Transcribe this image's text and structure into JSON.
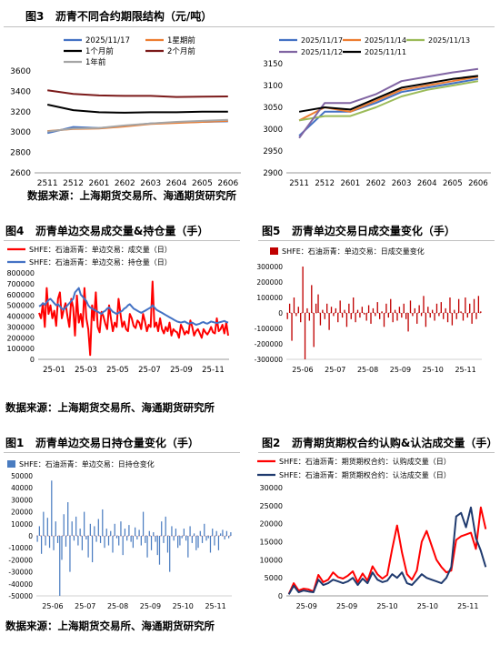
{
  "sources": {
    "row1": "数据来源：上海期货交易所、海通期货研究所",
    "row2": "数据来源：上海期货交易所、海通期货研究所",
    "row3": "数据来源：上海期货交易所、海通期货研究所"
  },
  "colors": {
    "blue": "#4472c4",
    "orange": "#ed7d31",
    "black": "#000000",
    "darkred": "#7b1a1a",
    "gray": "#a5a5a5",
    "green": "#9bbb59",
    "purple": "#8064a2",
    "red": "#ff0000",
    "barred": "#c00000",
    "navy": "#1f3a6e",
    "barblue": "#4a7cc0"
  },
  "chart_data": [
    {
      "id": "fig3-left",
      "figure_label": "图3",
      "title": "沥青不同合约期限结构（元/吨）",
      "type": "line",
      "categories": [
        "2511",
        "2512",
        "2601",
        "2602",
        "2603",
        "2604",
        "2605",
        "2606"
      ],
      "ylim": [
        2600,
        3600
      ],
      "yticks": [
        2600,
        2800,
        3000,
        3200,
        3400,
        3600
      ],
      "legend_placement": "top",
      "series": [
        {
          "name": "2025/11/17",
          "color": "#4472c4",
          "values": [
            2990,
            3050,
            3040,
            3060,
            3085,
            3095,
            3100,
            3105
          ]
        },
        {
          "name": "1星期前",
          "color": "#ed7d31",
          "values": [
            3010,
            3030,
            3035,
            3055,
            3080,
            3090,
            3100,
            3110
          ]
        },
        {
          "name": "1个月前",
          "color": "#000000",
          "values": [
            3270,
            3215,
            3195,
            3190,
            3195,
            3195,
            3200,
            3200
          ]
        },
        {
          "name": "2个月前",
          "color": "#7b1a1a",
          "values": [
            3410,
            3375,
            3360,
            3355,
            3355,
            3345,
            3348,
            3350
          ]
        },
        {
          "name": "1年前",
          "color": "#a5a5a5",
          "values": [
            3005,
            3035,
            3040,
            3065,
            3085,
            3100,
            3110,
            3120
          ]
        }
      ]
    },
    {
      "id": "fig3-right",
      "title": "",
      "type": "line",
      "categories": [
        "2511",
        "2512",
        "2601",
        "2602",
        "2603",
        "2604",
        "2605",
        "2606"
      ],
      "ylim": [
        2900,
        3150
      ],
      "yticks": [
        2900,
        2950,
        3000,
        3050,
        3100,
        3150
      ],
      "legend_placement": "top",
      "series": [
        {
          "name": "2025/11/17",
          "color": "#4472c4",
          "values": [
            2985,
            3040,
            3040,
            3060,
            3085,
            3095,
            3105,
            3115
          ]
        },
        {
          "name": "2025/11/14",
          "color": "#ed7d31",
          "values": [
            3020,
            3050,
            3040,
            3065,
            3090,
            3100,
            3110,
            3120
          ]
        },
        {
          "name": "2025/11/13",
          "color": "#9bbb59",
          "values": [
            3020,
            3030,
            3030,
            3050,
            3075,
            3090,
            3100,
            3110
          ]
        },
        {
          "name": "2025/11/12",
          "color": "#8064a2",
          "values": [
            2980,
            3060,
            3060,
            3080,
            3110,
            3120,
            3130,
            3138
          ]
        },
        {
          "name": "2025/11/11",
          "color": "#000000",
          "values": [
            3040,
            3050,
            3045,
            3070,
            3095,
            3105,
            3115,
            3122
          ]
        }
      ]
    },
    {
      "id": "fig4",
      "figure_label": "图4",
      "title": "沥青单边交易成交量&持仓量（手）",
      "type": "line",
      "xticks": [
        "25-01",
        "25-03",
        "25-05",
        "25-07",
        "25-09",
        "25-11"
      ],
      "ylim": [
        0,
        800000
      ],
      "yticks": [
        0,
        100000,
        200000,
        300000,
        400000,
        500000,
        600000,
        700000,
        800000
      ],
      "legend_placement": "top-left",
      "series": [
        {
          "name": "SHFE：石油沥青：单边交易：成交量（日）",
          "color": "#ff0000",
          "width": 2,
          "values": [
            430000,
            380000,
            520000,
            300000,
            660000,
            420000,
            500000,
            380000,
            450000,
            310000,
            560000,
            620000,
            380000,
            460000,
            520000,
            400000,
            300000,
            560000,
            480000,
            220000,
            590000,
            340000,
            420000,
            300000,
            660000,
            380000,
            280000,
            40000,
            500000,
            360000,
            620000,
            300000,
            250000,
            440000,
            400000,
            330000,
            280000,
            500000,
            380000,
            260000,
            340000,
            300000,
            560000,
            430000,
            300000,
            350000,
            280000,
            260000,
            420000,
            380000,
            310000,
            290000,
            360000,
            340000,
            280000,
            420000,
            350000,
            260000,
            320000,
            300000,
            720000,
            300000,
            340000,
            260000,
            380000,
            280000,
            240000,
            300000,
            260000,
            340000,
            220000,
            280000,
            260000,
            250000,
            200000,
            320000,
            280000,
            230000,
            260000,
            240000,
            360000,
            300000,
            220000,
            260000,
            280000,
            240000,
            200000,
            280000,
            250000,
            230000,
            260000,
            300000,
            250000,
            240000,
            380000,
            260000,
            280000,
            320000,
            240000,
            340000,
            220000
          ]
        },
        {
          "name": "SHFE：石油沥青：单边交易：持仓量（日）",
          "color": "#4472c4",
          "width": 2,
          "values": [
            490000,
            500000,
            520000,
            505000,
            530000,
            550000,
            560000,
            540000,
            520000,
            500000,
            510000,
            490000,
            470000,
            460000,
            480000,
            500000,
            520000,
            540000,
            560000,
            620000,
            640000,
            660000,
            600000,
            580000,
            560000,
            540000,
            500000,
            480000,
            470000,
            460000,
            450000,
            440000,
            430000,
            420000,
            440000,
            450000,
            470000,
            480000,
            460000,
            440000,
            430000,
            420000,
            430000,
            440000,
            450000,
            470000,
            480000,
            500000,
            510000,
            490000,
            470000,
            460000,
            450000,
            440000,
            430000,
            440000,
            450000,
            460000,
            470000,
            480000,
            500000,
            480000,
            460000,
            450000,
            440000,
            430000,
            420000,
            410000,
            400000,
            390000,
            380000,
            370000,
            360000,
            350000,
            345000,
            340000,
            345000,
            350000,
            340000,
            330000,
            335000,
            340000,
            330000,
            320000,
            325000,
            330000,
            340000,
            345000,
            335000,
            330000,
            340000,
            350000,
            345000,
            340000,
            335000,
            340000,
            345000,
            350000,
            355000,
            345000,
            340000
          ]
        }
      ]
    },
    {
      "id": "fig5",
      "figure_label": "图5",
      "title": "沥青单边交易日成交量变化（手）",
      "type": "bar",
      "xticks": [
        "25-06",
        "25-07",
        "25-08",
        "25-09",
        "25-10",
        "25-11"
      ],
      "ylim": [
        -300000,
        300000
      ],
      "yticks": [
        -300000,
        -200000,
        -100000,
        0,
        100000,
        200000,
        300000
      ],
      "legend_placement": "top-left",
      "series": [
        {
          "name": "SHFE：石油沥青：单边交易：日成交量变化",
          "color": "#c00000",
          "values": [
            -40000,
            60000,
            -180000,
            100000,
            -20000,
            40000,
            -60000,
            300000,
            -300000,
            30000,
            -50000,
            180000,
            -220000,
            60000,
            120000,
            -80000,
            20000,
            -40000,
            60000,
            -110000,
            40000,
            -20000,
            30000,
            -60000,
            80000,
            -30000,
            20000,
            -90000,
            60000,
            -40000,
            100000,
            -60000,
            20000,
            -30000,
            40000,
            -10000,
            -50000,
            50000,
            -70000,
            30000,
            -20000,
            70000,
            -40000,
            10000,
            -90000,
            60000,
            -30000,
            90000,
            -60000,
            20000,
            -50000,
            40000,
            -30000,
            60000,
            -40000,
            -120000,
            80000,
            -20000,
            30000,
            -70000,
            50000,
            -20000,
            110000,
            -90000,
            40000,
            -30000,
            20000,
            -50000,
            60000,
            -20000,
            70000,
            -40000,
            30000,
            -60000,
            100000,
            -80000,
            20000,
            -40000,
            90000,
            10000,
            -50000,
            100000,
            -30000,
            60000,
            -70000,
            90000,
            -40000,
            110000,
            10000
          ]
        }
      ]
    },
    {
      "id": "fig1",
      "figure_label": "图1",
      "title": "沥青单边交易日持仓量变化（手）",
      "type": "bar",
      "xticks": [
        "25-06",
        "25-07",
        "25-08",
        "25-09",
        "25-10",
        "25-11"
      ],
      "ylim": [
        -50000,
        50000
      ],
      "yticks": [
        -50000,
        -40000,
        -30000,
        -20000,
        -10000,
        0,
        10000,
        20000,
        30000,
        40000,
        50000
      ],
      "legend_placement": "top-left",
      "series": [
        {
          "name": "SHFE：石油沥青：单边交易：日持仓变化",
          "color": "#4a7cc0",
          "values": [
            -5000,
            8000,
            -15000,
            20000,
            -8000,
            15000,
            -10000,
            46000,
            -12000,
            12000,
            -6000,
            -50000,
            -20000,
            18000,
            -9000,
            28000,
            -30000,
            12000,
            -4000,
            16000,
            -8000,
            6000,
            -12000,
            20000,
            -3000,
            -18000,
            10000,
            -22000,
            8000,
            -5000,
            14000,
            -6000,
            22000,
            -10000,
            6000,
            -8000,
            4000,
            -14000,
            10000,
            -2000,
            -8000,
            12000,
            -16000,
            6000,
            -4000,
            9000,
            -5000,
            -10000,
            7000,
            -3000,
            5000,
            -8000,
            20000,
            -6000,
            -18000,
            4000,
            -12000,
            3000,
            -5000,
            -16000,
            -24000,
            12000,
            -6000,
            16000,
            -14000,
            -30000,
            8000,
            -4000,
            6000,
            -10000,
            -8000,
            -2000,
            6000,
            -4000,
            -18000,
            8000,
            -6000,
            2000,
            -12000,
            -10000,
            4000,
            -6000,
            10000,
            -4000,
            -2000,
            -14000,
            6000,
            -8000,
            4000,
            -12000,
            2000,
            5000,
            -3000,
            4000,
            -2000,
            3000
          ]
        }
      ]
    },
    {
      "id": "fig2",
      "figure_label": "图2",
      "title": "沥青期货期权合约认购&认沽成交量（手）",
      "type": "line",
      "xticks": [
        "25-09",
        "25-09",
        "25-10",
        "25-10",
        "25-11"
      ],
      "ylim": [
        0,
        30000
      ],
      "yticks": [
        0,
        5000,
        10000,
        15000,
        20000,
        25000,
        30000
      ],
      "legend_placement": "top-left",
      "series": [
        {
          "name": "SHFE：石油沥青：期货期权合约：认购成交量（日）",
          "color": "#ff0000",
          "width": 2,
          "values": [
            500,
            3500,
            1500,
            2000,
            1800,
            1200,
            5800,
            3800,
            4500,
            6500,
            5200,
            4800,
            5600,
            6800,
            3800,
            6200,
            4200,
            8200,
            6000,
            4800,
            5800,
            13000,
            19500,
            12000,
            6000,
            4500,
            7000,
            15000,
            18000,
            14000,
            10000,
            8000,
            6500,
            7000,
            15500,
            16500,
            17000,
            17500,
            13000,
            24500,
            18500
          ]
        },
        {
          "name": "SHFE：石油沥青：期货期权合约：认沽成交量（日）",
          "color": "#1f3a6e",
          "width": 2,
          "values": [
            400,
            2800,
            1000,
            1500,
            1200,
            1000,
            4500,
            3000,
            3500,
            4500,
            4000,
            3500,
            4000,
            5000,
            3000,
            4800,
            3500,
            6500,
            4500,
            3800,
            4200,
            6000,
            5000,
            6500,
            3500,
            3000,
            4500,
            6000,
            5000,
            4500,
            4000,
            3500,
            5000,
            8000,
            22000,
            23000,
            19000,
            24500,
            16000,
            12500,
            8000
          ]
        }
      ]
    }
  ]
}
